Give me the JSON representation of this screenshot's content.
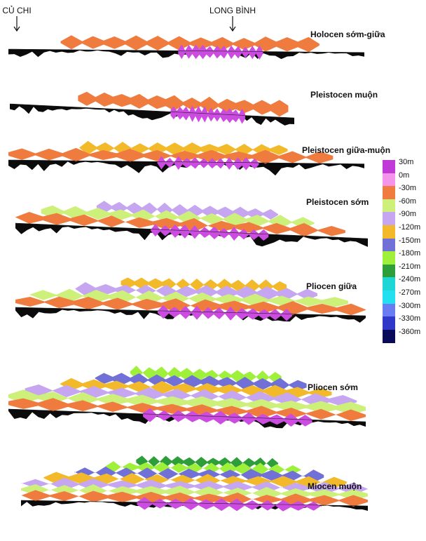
{
  "markers": [
    {
      "label": "CỦ CHI"
    },
    {
      "label": "LONG BÌNH"
    }
  ],
  "layers": [
    {
      "name": "Holocen sớm-giữa",
      "colors": [
        "#cc4be0",
        "#f07b3f"
      ]
    },
    {
      "name": "Pleistocen muộn",
      "colors": [
        "#cc4be0",
        "#f07b3f"
      ]
    },
    {
      "name": "Pleistocen giữa-muộn",
      "colors": [
        "#cc4be0",
        "#f07b3f",
        "#f2ba2a"
      ]
    },
    {
      "name": "Pleistocen sớm",
      "colors": [
        "#cc4be0",
        "#f07b3f",
        "#ccf07a",
        "#c6a6f0"
      ]
    },
    {
      "name": "Pliocen giữa",
      "colors": [
        "#cc4be0",
        "#f07b3f",
        "#ccf07a",
        "#c6a6f0",
        "#f2ba2a"
      ]
    },
    {
      "name": "Pliocen sớm",
      "colors": [
        "#cc4be0",
        "#f07b3f",
        "#ccf07a",
        "#c6a6f0",
        "#f2ba2a",
        "#7070d6",
        "#9ef03a"
      ]
    },
    {
      "name": "Miocen muộn",
      "colors": [
        "#cc4be0",
        "#f07b3f",
        "#ccf07a",
        "#c6a6f0",
        "#f2ba2a",
        "#7070d6",
        "#9ef03a",
        "#2e9e3a"
      ]
    }
  ],
  "legend": [
    {
      "label": "30m",
      "color": "#c03ad8"
    },
    {
      "label": "0m",
      "color": "#f495ea"
    },
    {
      "label": "-30m",
      "color": "#f07b3f"
    },
    {
      "label": "-60m",
      "color": "#ccf07a"
    },
    {
      "label": "-90m",
      "color": "#c6a6f0"
    },
    {
      "label": "-120m",
      "color": "#f2ba2a"
    },
    {
      "label": "-150m",
      "color": "#7070d6"
    },
    {
      "label": "-180m",
      "color": "#9ef03a"
    },
    {
      "label": "-210m",
      "color": "#2e9e3a"
    },
    {
      "label": "-240m",
      "color": "#1fd6d6"
    },
    {
      "label": "-270m",
      "color": "#23e0f0"
    },
    {
      "label": "-300m",
      "color": "#6a7cf2"
    },
    {
      "label": "-330m",
      "color": "#3038c8"
    },
    {
      "label": "-360m",
      "color": "#0a0a5a"
    }
  ]
}
